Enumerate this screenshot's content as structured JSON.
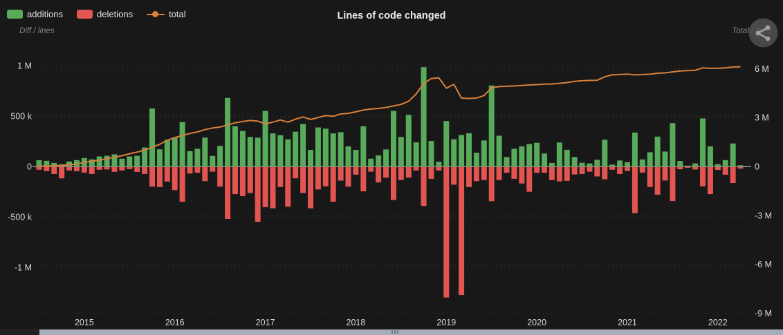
{
  "header": {
    "title": "Lines of code changed",
    "left_axis_caption": "Diff / lines",
    "right_axis_caption": "Total / lines"
  },
  "legend": [
    {
      "id": "additions",
      "label": "additions",
      "color": "#58ab5b",
      "marker": "box"
    },
    {
      "id": "deletions",
      "label": "deletions",
      "color": "#e25550",
      "marker": "box"
    },
    {
      "id": "total",
      "label": "total",
      "color": "#d9803a",
      "marker": "line"
    }
  ],
  "chart_data": {
    "type": "bar",
    "subtype": "combo-bar-line",
    "title": "Lines of code changed",
    "x_start_month": "2014-07",
    "x_month_count": 94,
    "x_year_ticks": [
      {
        "label": "2015",
        "month_index": 6
      },
      {
        "label": "2016",
        "month_index": 18
      },
      {
        "label": "2017",
        "month_index": 30
      },
      {
        "label": "2018",
        "month_index": 42
      },
      {
        "label": "2019",
        "month_index": 54
      },
      {
        "label": "2020",
        "month_index": 66
      },
      {
        "label": "2021",
        "month_index": 78
      },
      {
        "label": "2022",
        "month_index": 90
      }
    ],
    "left_axis": {
      "label": "Diff / lines",
      "units": "lines (thousands)",
      "ticks": [
        {
          "value_k": 1000,
          "label": "1 M"
        },
        {
          "value_k": 500,
          "label": "500 k"
        },
        {
          "value_k": 0,
          "label": "0"
        },
        {
          "value_k": -500,
          "label": "-500 k"
        },
        {
          "value_k": -1000,
          "label": "-1 M"
        }
      ],
      "range_k": [
        -1400,
        1200
      ]
    },
    "right_axis": {
      "label": "Total / lines",
      "units": "lines (millions)",
      "ticks": [
        {
          "value_m": 6,
          "label": "6 M"
        },
        {
          "value_m": 3,
          "label": "3 M"
        },
        {
          "value_m": 0,
          "label": "0"
        },
        {
          "value_m": -3,
          "label": "-3 M"
        },
        {
          "value_m": -6,
          "label": "-6 M"
        },
        {
          "value_m": -9,
          "label": "-9 M"
        }
      ],
      "range_m": [
        -9.5,
        6.3
      ]
    },
    "series": [
      {
        "name": "additions",
        "axis": "left",
        "unit": "k",
        "values": [
          63,
          56,
          35,
          21,
          49,
          63,
          84,
          70,
          99,
          106,
          120,
          77,
          99,
          106,
          188,
          575,
          170,
          265,
          290,
          440,
          152,
          176,
          286,
          105,
          204,
          680,
          399,
          352,
          293,
          286,
          551,
          328,
          310,
          270,
          345,
          422,
          164,
          387,
          375,
          328,
          340,
          199,
          164,
          399,
          77,
          110,
          169,
          551,
          293,
          512,
          239,
          985,
          253,
          47,
          451,
          270,
          312,
          329,
          136,
          258,
          803,
          305,
          94,
          176,
          199,
          223,
          235,
          129,
          35,
          238,
          165,
          94,
          37,
          30,
          66,
          265,
          19,
          59,
          42,
          336,
          70,
          141,
          296,
          148,
          430,
          54,
          8,
          30,
          476,
          200,
          23,
          63,
          228,
          12
        ]
      },
      {
        "name": "deletions",
        "axis": "left",
        "unit": "k",
        "sign": "negative",
        "values": [
          28,
          42,
          70,
          113,
          35,
          42,
          56,
          70,
          28,
          25,
          49,
          35,
          21,
          49,
          70,
          195,
          200,
          145,
          230,
          345,
          65,
          58,
          141,
          47,
          195,
          516,
          270,
          289,
          258,
          544,
          399,
          410,
          199,
          394,
          113,
          258,
          410,
          223,
          192,
          345,
          136,
          195,
          77,
          242,
          47,
          153,
          106,
          328,
          129,
          106,
          35,
          387,
          118,
          35,
          1295,
          176,
          1270,
          199,
          141,
          129,
          340,
          129,
          58,
          118,
          164,
          246,
          58,
          58,
          129,
          143,
          138,
          75,
          70,
          47,
          94,
          122,
          28,
          70,
          40,
          458,
          56,
          199,
          275,
          134,
          338,
          23,
          8,
          25,
          192,
          270,
          30,
          77,
          160,
          16
        ]
      },
      {
        "name": "total",
        "axis": "right",
        "unit": "M",
        "style": "line",
        "values": [
          0.02,
          0.03,
          0.04,
          0.06,
          0.1,
          0.16,
          0.25,
          0.32,
          0.38,
          0.48,
          0.56,
          0.66,
          0.78,
          0.88,
          1.0,
          1.18,
          1.36,
          1.6,
          1.77,
          1.9,
          2.02,
          2.12,
          2.26,
          2.36,
          2.42,
          2.55,
          2.68,
          2.76,
          2.82,
          2.78,
          2.62,
          2.72,
          2.85,
          2.72,
          2.9,
          3.04,
          2.88,
          3.0,
          3.12,
          3.08,
          3.22,
          3.26,
          3.35,
          3.46,
          3.52,
          3.56,
          3.62,
          3.71,
          3.81,
          4.0,
          4.45,
          5.1,
          5.39,
          5.44,
          4.8,
          5.04,
          4.2,
          4.17,
          4.2,
          4.35,
          4.83,
          4.9,
          4.92,
          4.94,
          4.97,
          5.0,
          5.02,
          5.05,
          5.06,
          5.1,
          5.15,
          5.22,
          5.26,
          5.28,
          5.29,
          5.5,
          5.62,
          5.64,
          5.66,
          5.62,
          5.64,
          5.66,
          5.72,
          5.74,
          5.8,
          5.86,
          5.88,
          5.9,
          6.05,
          6.02,
          6.03,
          6.05,
          6.1,
          6.11
        ]
      }
    ],
    "colors": {
      "additions": "#58ab5b",
      "deletions": "#e25550",
      "total": "#d9803a",
      "grid": "#2e2e2e",
      "zero_line": "#c9c9c9",
      "tick_text": "#d8d8d8",
      "background": "#181818"
    },
    "legend_position": "top-left",
    "grid": "dashed-horizontal"
  },
  "scrollbar": {
    "orientation": "horizontal",
    "thumb_full_width": true
  },
  "watermark": {
    "icon": "share-icon"
  }
}
